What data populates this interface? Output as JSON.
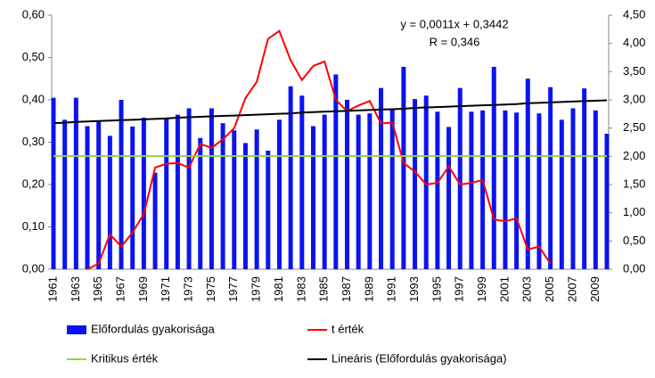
{
  "chart_data": {
    "type": "bar",
    "annotations": [
      "y = 0,0011x + 0,3442",
      "R = 0,346"
    ],
    "categories": [
      "1961",
      null,
      "1963",
      null,
      "1965",
      null,
      "1967",
      null,
      "1969",
      null,
      "1971",
      null,
      "1973",
      null,
      "1975",
      null,
      "1977",
      null,
      "1979",
      null,
      "1981",
      null,
      "1983",
      null,
      "1985",
      null,
      "1987",
      null,
      "1989",
      null,
      "1991",
      null,
      "1993",
      null,
      "1995",
      null,
      "1997",
      null,
      "1999",
      null,
      "2001",
      null,
      "2003",
      null,
      "2005",
      null,
      "2007",
      null,
      "2009",
      null
    ],
    "series": [
      {
        "name": "Előfordulás gyakorisága",
        "type": "bar",
        "color": "#0a14f0",
        "values": [
          0.405,
          0.353,
          0.405,
          0.338,
          0.35,
          0.315,
          0.4,
          0.337,
          0.358,
          0.228,
          0.358,
          0.365,
          0.38,
          0.31,
          0.38,
          0.345,
          0.328,
          0.298,
          0.33,
          0.28,
          0.353,
          0.432,
          0.41,
          0.338,
          0.365,
          0.46,
          0.4,
          0.365,
          0.368,
          0.428,
          0.378,
          0.478,
          0.402,
          0.41,
          0.372,
          0.336,
          0.428,
          0.372,
          0.375,
          0.478,
          0.375,
          0.37,
          0.45,
          0.368,
          0.43,
          0.353,
          0.38,
          0.427,
          0.375,
          0.32
        ]
      },
      {
        "name": "t érték",
        "type": "line",
        "axis": "y2",
        "color": "#ff0000",
        "values": [
          null,
          null,
          null,
          0.0,
          0.1,
          0.62,
          0.4,
          0.65,
          0.98,
          1.8,
          1.87,
          1.88,
          1.8,
          2.22,
          2.15,
          2.3,
          2.5,
          3.03,
          3.32,
          4.08,
          4.22,
          3.7,
          3.35,
          3.6,
          3.68,
          3.0,
          2.8,
          2.9,
          2.98,
          2.58,
          2.6,
          1.88,
          1.73,
          1.5,
          1.53,
          1.82,
          1.5,
          1.53,
          1.58,
          0.88,
          0.85,
          0.9,
          0.35,
          0.4,
          0.1,
          null,
          null,
          null,
          null,
          null
        ]
      },
      {
        "name": "Kritikus érték",
        "type": "line",
        "color": "#92d050",
        "values": [
          0.267,
          0.267,
          0.267,
          0.267,
          0.267,
          0.267,
          0.267,
          0.267,
          0.267,
          0.267,
          0.267,
          0.267,
          0.267,
          0.267,
          0.267,
          0.267,
          0.267,
          0.267,
          0.267,
          0.267,
          0.267,
          0.267,
          0.267,
          0.267,
          0.267,
          0.267,
          0.267,
          0.267,
          0.267,
          0.267,
          0.267,
          0.267,
          0.267,
          0.267,
          0.267,
          0.267,
          0.267,
          0.267,
          0.267,
          0.267,
          0.267,
          0.267,
          0.267,
          0.267,
          0.267,
          0.267,
          0.267,
          0.267,
          0.267,
          0.267
        ]
      },
      {
        "name": "Lineáris (Előfordulás gyakorisága)",
        "type": "line",
        "color": "#000000",
        "values": [
          0.345,
          0.346,
          0.348,
          0.349,
          0.35,
          0.351,
          0.352,
          0.353,
          0.354,
          0.355,
          0.356,
          0.358,
          0.359,
          0.36,
          0.361,
          0.362,
          0.363,
          0.364,
          0.365,
          0.366,
          0.367,
          0.368,
          0.37,
          0.371,
          0.372,
          0.373,
          0.374,
          0.375,
          0.376,
          0.377,
          0.378,
          0.379,
          0.381,
          0.382,
          0.383,
          0.384,
          0.385,
          0.386,
          0.387,
          0.388,
          0.389,
          0.39,
          0.392,
          0.393,
          0.394,
          0.395,
          0.396,
          0.397,
          0.398,
          0.399
        ]
      }
    ],
    "ylim": [
      0,
      0.6
    ],
    "yticks": [
      {
        "value": 0,
        "label": "0,00"
      },
      {
        "value": 0.1,
        "label": "0,10"
      },
      {
        "value": 0.2,
        "label": "0,20"
      },
      {
        "value": 0.3,
        "label": "0,30"
      },
      {
        "value": 0.4,
        "label": "0,40"
      },
      {
        "value": 0.5,
        "label": "0,50"
      },
      {
        "value": 0.6,
        "label": "0,60"
      }
    ],
    "y2lim": [
      0,
      4.5
    ],
    "y2ticks": [
      {
        "value": 0,
        "label": "0,00"
      },
      {
        "value": 0.5,
        "label": "0,50"
      },
      {
        "value": 1,
        "label": "1,00"
      },
      {
        "value": 1.5,
        "label": "1,50"
      },
      {
        "value": 2,
        "label": "2,00"
      },
      {
        "value": 2.5,
        "label": "2,50"
      },
      {
        "value": 3,
        "label": "3,00"
      },
      {
        "value": 3.5,
        "label": "3,50"
      },
      {
        "value": 4,
        "label": "4,00"
      },
      {
        "value": 4.5,
        "label": "4,50"
      }
    ],
    "legend": "bottom"
  }
}
